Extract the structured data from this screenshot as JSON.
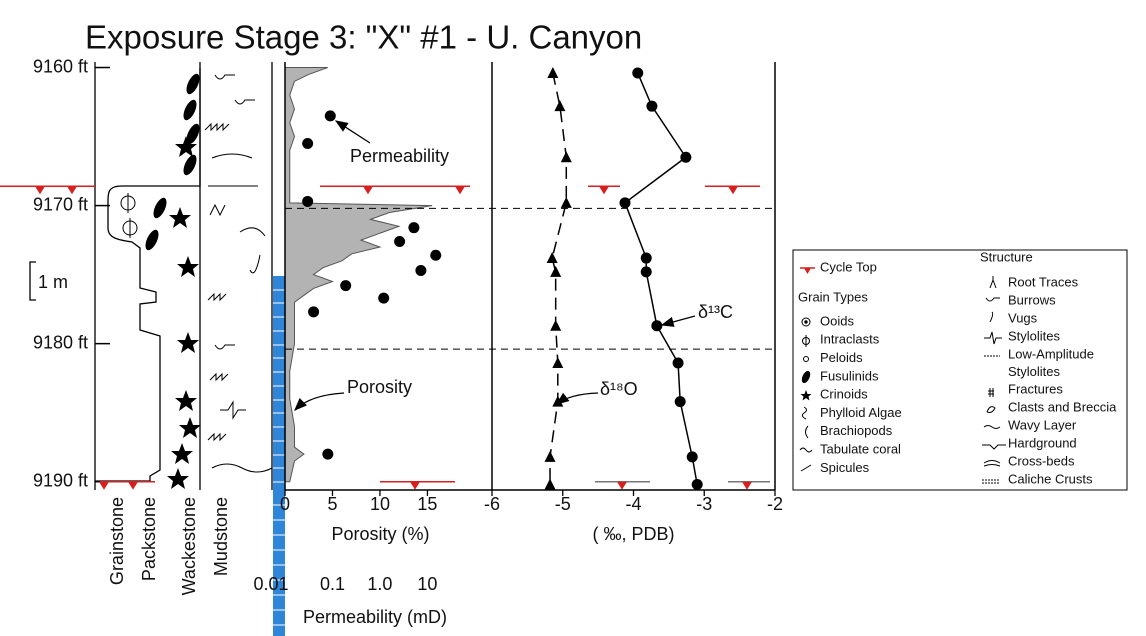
{
  "title": "Exposure Stage 3: \"X\" #1 - U. Canyon",
  "lithology": {
    "labels": [
      "Grainstone",
      "Packstone",
      "Wackestone",
      "Mudstone"
    ],
    "scale_bar": "1 m"
  },
  "chart_data": [
    {
      "type": "depth-profile",
      "ylim": [
        9159.6,
        9190.6
      ],
      "yticks": [
        {
          "value": 9160,
          "label": "9160 ft"
        },
        {
          "value": 9170,
          "label": "9170 ft"
        },
        {
          "value": 9180,
          "label": "9180 ft"
        },
        {
          "value": 9190,
          "label": "9190 ft"
        }
      ],
      "xlim": [
        0,
        21.8
      ],
      "xticks": [
        0,
        5,
        10,
        15
      ],
      "xlabel": "Porosity (%)",
      "x2scale": "log",
      "x2lim": [
        0.01,
        230
      ],
      "x2ticks": [
        0.01,
        0.1,
        {
          "value": 1,
          "label": "1.0"
        },
        10
      ],
      "x2label": "Permeability (mD)",
      "cycle_tops": [
        9168.6,
        9190
      ],
      "dashed_lines": [
        9170.2,
        9180.4
      ],
      "series": [
        {
          "name": "Porosity",
          "style": "area",
          "color": "#b3b3b3",
          "depth": [
            9160,
            9160.5,
            9161,
            9162,
            9163,
            9164,
            9165,
            9166,
            9167,
            9168,
            9169,
            9169.8,
            9170,
            9170.5,
            9171,
            9171.5,
            9172,
            9172.5,
            9173,
            9173.5,
            9174,
            9174.5,
            9175,
            9175.5,
            9176,
            9176.5,
            9177,
            9178,
            9180,
            9182,
            9184,
            9186,
            9187.5,
            9188,
            9188.5,
            9190
          ],
          "values": [
            4.5,
            2.5,
            1,
            0.5,
            1,
            0.5,
            1,
            0.5,
            0.5,
            0.5,
            0.5,
            0.5,
            15.5,
            11,
            9,
            12,
            10,
            8,
            10,
            7,
            6,
            4,
            3,
            5,
            3,
            2,
            1,
            1,
            1,
            0.5,
            0.5,
            1,
            1,
            2,
            1,
            0.5
          ]
        },
        {
          "name": "Permeability",
          "style": "points",
          "marker": "circle",
          "axis": "x2",
          "color": "#000000",
          "depth": [
            9163.5,
            9165.5,
            9169.7,
            9171.6,
            9172.6,
            9173.6,
            9174.7,
            9175.8,
            9176.7,
            9177.7,
            9188.0
          ],
          "values": [
            0.09,
            0.03,
            0.03,
            5.2,
            2.6,
            15,
            7.3,
            0.19,
            1.2,
            0.04,
            0.08
          ]
        }
      ]
    },
    {
      "type": "depth-profile",
      "ylim": [
        9159.6,
        9190.6
      ],
      "xlim": [
        -6,
        -2
      ],
      "xticks": [
        -6,
        -5,
        -4,
        -3,
        -2
      ],
      "xlabel": "( ‰, PDB)",
      "series": [
        {
          "name": "δ¹³C",
          "style": "line",
          "marker": "circle",
          "dash": false,
          "color": "#000000",
          "depth": [
            9160.4,
            9162.8,
            9166.5,
            9169.8,
            9173.8,
            9174.8,
            9178.7,
            9181.4,
            9184.2,
            9188.2,
            9190.2
          ],
          "values": [
            -3.94,
            -3.74,
            -3.26,
            -4.12,
            -3.82,
            -3.82,
            -3.67,
            -3.37,
            -3.34,
            -3.17,
            -3.1
          ]
        },
        {
          "name": "δ¹⁸O",
          "style": "line",
          "marker": "triangle",
          "dash": true,
          "color": "#000000",
          "depth": [
            9160.4,
            9162.8,
            9166.5,
            9169.8,
            9173.8,
            9174.8,
            9178.7,
            9181.4,
            9184.2,
            9188.2,
            9190.2
          ],
          "values": [
            -5.14,
            -5.04,
            -4.95,
            -4.95,
            -5.15,
            -5.1,
            -5.1,
            -5.07,
            -5.07,
            -5.18,
            -5.18
          ]
        }
      ]
    }
  ],
  "legend": {
    "cycle_top": "Cycle Top",
    "grain_types": {
      "title": "Grain Types",
      "items": [
        "Ooids",
        "Intraclasts",
        "Peloids",
        "Fusulinids",
        "Crinoids",
        "Phylloid Algae",
        "Brachiopods",
        "Tabulate coral",
        "Spicules"
      ]
    },
    "structure": {
      "title": "Structure",
      "items": [
        "Root Traces",
        "Burrows",
        "Vugs",
        "Stylolites",
        [
          "Low-Amplitude",
          "Stylolites"
        ],
        "Fractures",
        "Clasts and Breccia",
        "Wavy Layer",
        "Hardground",
        "Cross-beds",
        "Caliche Crusts"
      ]
    }
  }
}
